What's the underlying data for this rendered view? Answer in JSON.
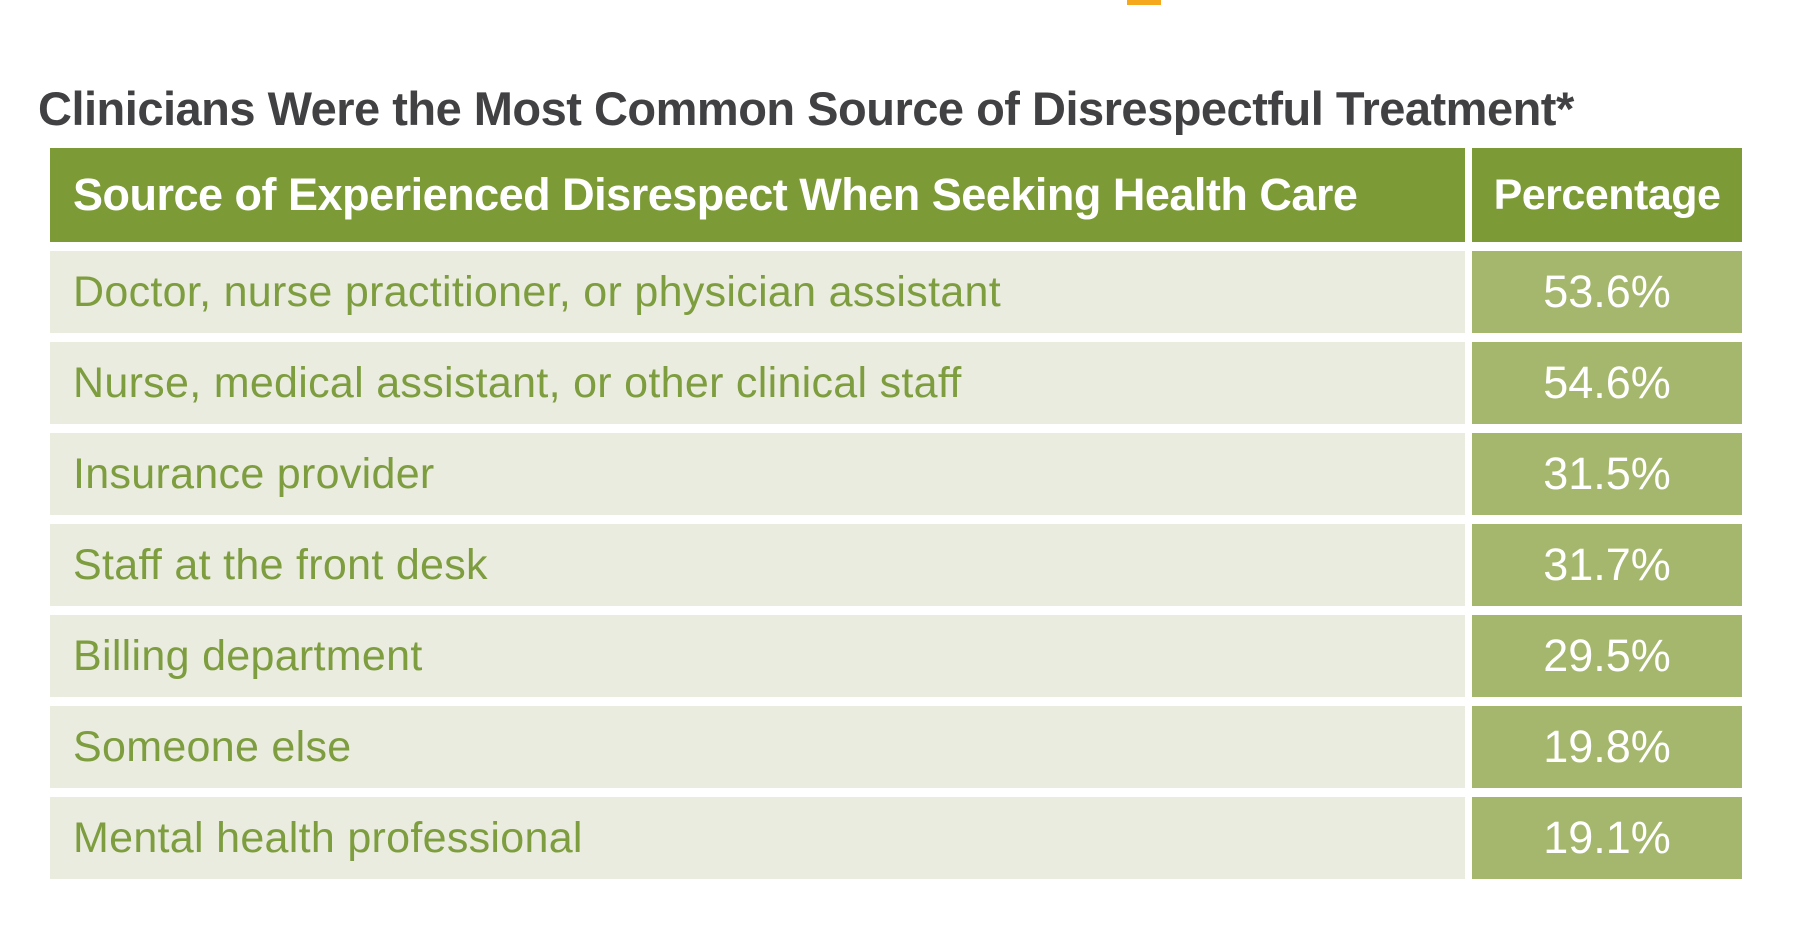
{
  "title": "Clinicians Were the Most Common Source of Disrespectful Treatment*",
  "accent": {
    "name": "orange-marker"
  },
  "theme": {
    "page_bg": "#ffffff",
    "title_text": "#414042",
    "header_bg": "#7c9a35",
    "pct_cell_bg": "#a4b76c",
    "label_cell_bg": "#e9ecde",
    "label_text": "#7d9d3f",
    "accent": "#f6a81c"
  },
  "table": {
    "columns": {
      "source": "Source of Experienced Disrespect When Seeking Health Care",
      "percentage": "Percentage"
    },
    "rows": [
      {
        "label": "Doctor, nurse practitioner, or physician assistant",
        "percentage": "53.6%"
      },
      {
        "label": "Nurse, medical assistant, or other clinical staff",
        "percentage": "54.6%"
      },
      {
        "label": "Insurance provider",
        "percentage": "31.5%"
      },
      {
        "label": "Staff at the front desk",
        "percentage": "31.7%"
      },
      {
        "label": "Billing department",
        "percentage": "29.5%"
      },
      {
        "label": "Someone else",
        "percentage": "19.8%"
      },
      {
        "label": "Mental health professional",
        "percentage": "19.1%"
      }
    ]
  },
  "chart_data": {
    "type": "table",
    "title": "Clinicians Were the Most Common Source of Disrespectful Treatment*",
    "columns": [
      "Source of Experienced Disrespect When Seeking Health Care",
      "Percentage"
    ],
    "categories": [
      "Doctor, nurse practitioner, or physician assistant",
      "Nurse, medical assistant, or other clinical staff",
      "Insurance provider",
      "Staff at the front desk",
      "Billing department",
      "Someone else",
      "Mental health professional"
    ],
    "values": [
      53.6,
      54.6,
      31.5,
      31.7,
      29.5,
      19.8,
      19.1
    ],
    "value_unit": "%"
  }
}
